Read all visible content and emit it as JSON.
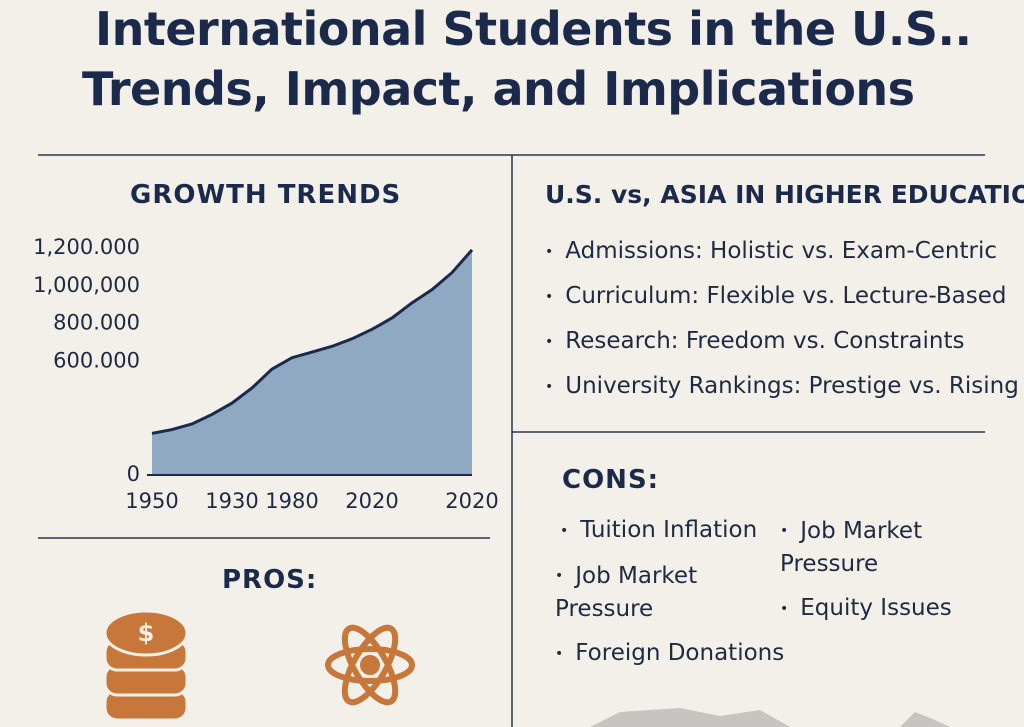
{
  "title": [
    "International Students in the U.S..",
    "Trends, Impact, and Implications"
  ],
  "chart_data": {
    "type": "area",
    "title": "GROWTH TRENDS",
    "categories": [
      "1950",
      null,
      null,
      null,
      "1930",
      null,
      null,
      "1980",
      null,
      null,
      null,
      "2020",
      null,
      null,
      null,
      null,
      "2020"
    ],
    "values": [
      220000,
      240000,
      270000,
      320000,
      380000,
      460000,
      560000,
      620000,
      650000,
      680000,
      720000,
      770000,
      830000,
      910000,
      980000,
      1070000,
      1190000
    ],
    "color": "#8ea9c1",
    "line_color": "#1b2a4a",
    "ylim": [
      0,
      1200000
    ],
    "yticks": [
      {
        "value": 1200000,
        "label": "1,200.000"
      },
      {
        "value": 1000000,
        "label": "1,000,000"
      },
      {
        "value": 800000,
        "label": "800.000"
      },
      {
        "value": 600000,
        "label": "600.000"
      },
      0
    ]
  },
  "comparison": {
    "title": "U.S. vs, ASIA IN HIGHER EDUCATION",
    "items": [
      "Admissions: Holistic vs. Exam-Centric",
      "Curriculum: Flexible vs. Lecture-Based",
      "Research: Freedom vs. Constraints",
      "University Rankings: Prestige vs. Rising"
    ]
  },
  "cons": {
    "title": "CONS:",
    "items": [
      "Tuition Inflation",
      "Job Market Pressure",
      "Foreign Donations",
      "Job Market Pressure",
      "Equity Issues"
    ]
  },
  "pros": {
    "title": "PROS:"
  }
}
